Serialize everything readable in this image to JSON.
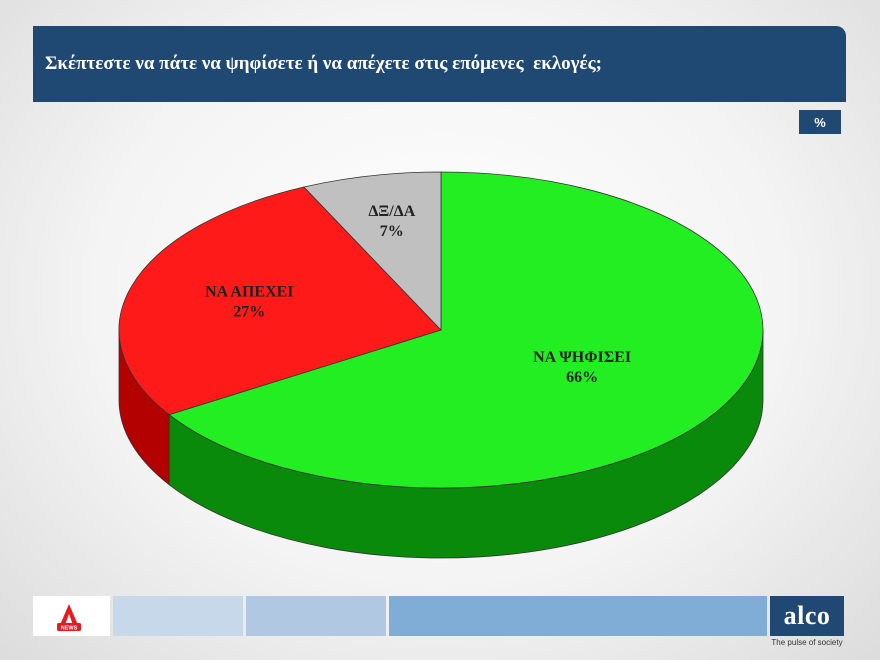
{
  "header": {
    "title": "Σκέπτεστε να πάτε να ψηφίσετε ή να απέχετε στις επόμενες  εκλογές;"
  },
  "unit": "%",
  "colors": {
    "title_bg": "#1f4872",
    "vote": "#22ee22",
    "abstain": "#ff1a1a",
    "dk": "#c0c0c0"
  },
  "chart_data": {
    "type": "pie",
    "title": "Σκέπτεστε να πάτε να ψηφίσετε ή να απέχετε στις επόμενες  εκλογές;",
    "unit": "%",
    "slices": [
      {
        "label": "ΝΑ ΨΗΦΙΣΕΙ",
        "value": 66,
        "value_label": "66%",
        "color": "#22ee22",
        "side_color": "#0a8a0a"
      },
      {
        "label": "ΝΑ ΑΠΕΧΕΙ",
        "value": 27,
        "value_label": "27%",
        "color": "#ff1a1a",
        "side_color": "#b30000"
      },
      {
        "label": "ΔΞ/ΔΑ",
        "value": 7,
        "value_label": "7%",
        "color": "#c0c0c0",
        "side_color": "#8a8a8a"
      }
    ],
    "style": "3d"
  },
  "footer": {
    "left_logo": "NEWS",
    "right_logo": "alco",
    "tagline": "The pulse of society"
  }
}
